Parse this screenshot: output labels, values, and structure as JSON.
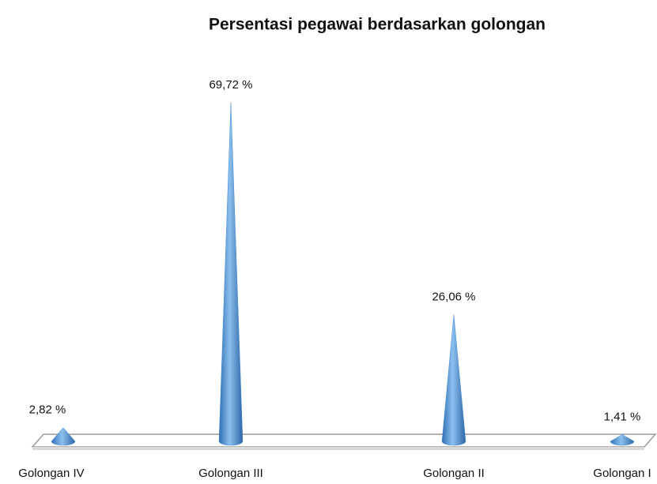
{
  "chart_data": {
    "type": "cone",
    "title": "Persentasi pegawai berdasarkan golongan",
    "categories": [
      "Golongan IV",
      "Golongan III",
      "Golongan II",
      "Golongan I"
    ],
    "values": [
      2.82,
      69.72,
      26.06,
      1.41
    ],
    "value_labels": [
      "2,82 %",
      "69,72 %",
      "26,06 %",
      "1,41 %"
    ],
    "color": "#4a8fd4"
  }
}
